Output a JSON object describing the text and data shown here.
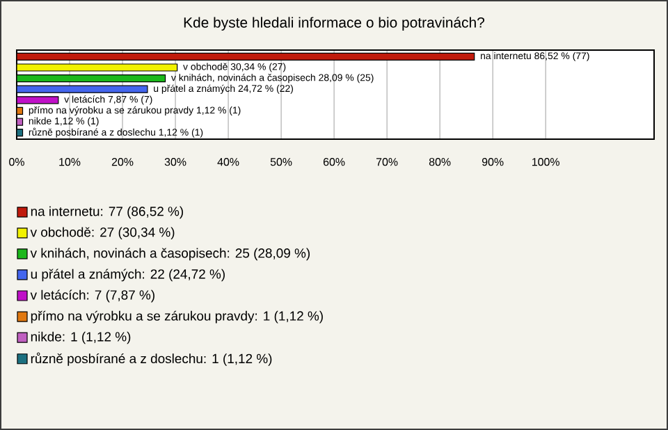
{
  "chart_data": {
    "type": "bar",
    "orientation": "horizontal",
    "title": "Kde byste hledali informace o bio potravinách?",
    "categories": [
      null,
      null,
      null,
      null,
      null,
      null,
      null,
      null
    ],
    "series": [
      {
        "name": "na internetu: 77 (86,52 %)",
        "color": "#c01a0c",
        "values": [
          86.52,
          null,
          null,
          null,
          null,
          null,
          null,
          null
        ],
        "value_labels": [
          "na internetu 86,52 % (77)",
          null,
          null,
          null,
          null,
          null,
          null,
          null
        ]
      },
      {
        "name": "v obchodě: 27 (30,34 %)",
        "color": "#f2f200",
        "values": [
          null,
          30.34,
          null,
          null,
          null,
          null,
          null,
          null
        ],
        "value_labels": [
          null,
          "v obchodě 30,34 % (27)",
          null,
          null,
          null,
          null,
          null,
          null
        ]
      },
      {
        "name": "v knihách, novinách a časopisech: 25 (28,09 %)",
        "color": "#1cb81c",
        "values": [
          null,
          null,
          28.09,
          null,
          null,
          null,
          null,
          null
        ],
        "value_labels": [
          null,
          null,
          "v knihách, novinách a časopisech 28,09 % (25)",
          null,
          null,
          null,
          null,
          null
        ]
      },
      {
        "name": "u přátel a známých: 22 (24,72 %)",
        "color": "#4466ee",
        "values": [
          null,
          null,
          null,
          24.72,
          null,
          null,
          null,
          null
        ],
        "value_labels": [
          null,
          null,
          null,
          "u přátel a známých 24,72 % (22)",
          null,
          null,
          null,
          null
        ]
      },
      {
        "name": "v letácích: 7 (7,87 %)",
        "color": "#c010c8",
        "values": [
          null,
          null,
          null,
          null,
          7.87,
          null,
          null,
          null
        ],
        "value_labels": [
          null,
          null,
          null,
          null,
          "v letácích 7,87 % (7)",
          null,
          null,
          null
        ]
      },
      {
        "name": "přímo na výrobku a se zárukou pravdy: 1 (1,12 %)",
        "color": "#e07810",
        "values": [
          null,
          null,
          null,
          null,
          null,
          1.12,
          null,
          null
        ],
        "value_labels": [
          null,
          null,
          null,
          null,
          null,
          "přímo na výrobku a se zárukou pravdy 1,12 % (1)",
          null,
          null
        ]
      },
      {
        "name": "nikde: 1 (1,12 %)",
        "color": "#c060c0",
        "values": [
          null,
          null,
          null,
          null,
          null,
          null,
          1.12,
          null
        ],
        "value_labels": [
          null,
          null,
          null,
          null,
          null,
          null,
          "nikde 1,12 % (1)",
          null
        ]
      },
      {
        "name": "různě posbírané a z doslechu: 1 (1,12 %)",
        "color": "#1c7080",
        "values": [
          null,
          null,
          null,
          null,
          null,
          null,
          null,
          1.12
        ],
        "value_labels": [
          null,
          null,
          null,
          null,
          null,
          null,
          null,
          "různě posbírané a z doslechu 1,12 % (1)"
        ]
      }
    ],
    "xlim": [
      0,
      120.5
    ],
    "xticks": [
      {
        "value": 0,
        "label": "0%"
      },
      {
        "value": 10,
        "label": "10%"
      },
      {
        "value": 20,
        "label": "20%"
      },
      {
        "value": 30,
        "label": "30%"
      },
      {
        "value": 40,
        "label": "40%"
      },
      {
        "value": 50,
        "label": "50%"
      },
      {
        "value": 60,
        "label": "60%"
      },
      {
        "value": 70,
        "label": "70%"
      },
      {
        "value": 80,
        "label": "80%"
      },
      {
        "value": 90,
        "label": "90%"
      },
      {
        "value": 100,
        "label": "100%"
      }
    ],
    "grid": "x",
    "legend": "bottom"
  }
}
